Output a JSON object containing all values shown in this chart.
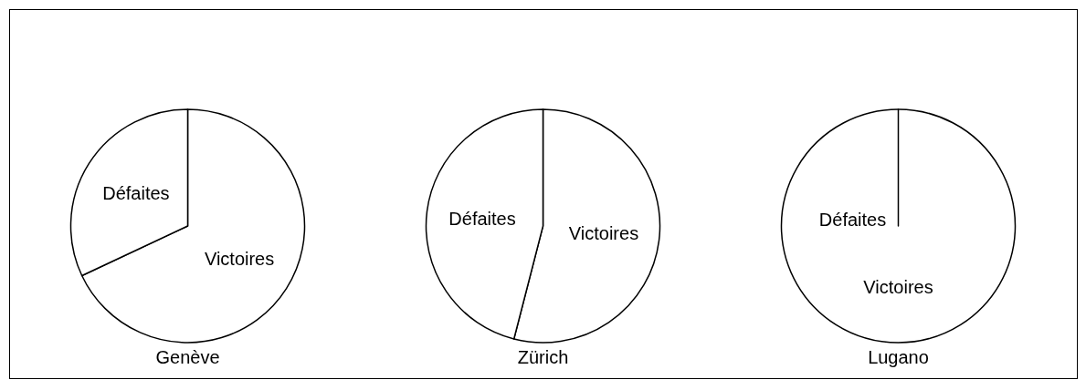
{
  "chart_data": [
    {
      "type": "pie",
      "title": "Genève",
      "categories": [
        "Victoires",
        "Défaites"
      ],
      "values": [
        68,
        32
      ],
      "colors": [
        "#ffffff",
        "#ffffff"
      ]
    },
    {
      "type": "pie",
      "title": "Zürich",
      "categories": [
        "Victoires",
        "Défaites"
      ],
      "values": [
        54,
        46
      ],
      "colors": [
        "#ffffff",
        "#ffffff"
      ]
    },
    {
      "type": "pie",
      "title": "Lugano",
      "categories": [
        "Victoires",
        "Défaites"
      ],
      "values": [
        100,
        0
      ],
      "colors": [
        "#ffffff",
        "#ffffff"
      ]
    }
  ]
}
